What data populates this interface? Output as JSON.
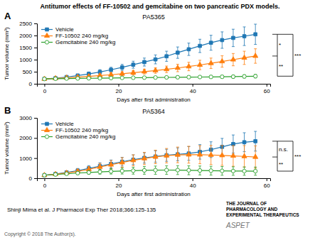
{
  "chart_data": [
    {
      "type": "line",
      "title": "PA5365",
      "xlabel": "Days after first administration",
      "ylabel": "Tumor volume (mm³)",
      "x": [
        0,
        3,
        6,
        9,
        12,
        15,
        18,
        21,
        24,
        27,
        30,
        33,
        36,
        39,
        42,
        45,
        48,
        51,
        54,
        57
      ],
      "series": [
        {
          "name": "Vehicle",
          "marker": "square",
          "values": [
            200,
            230,
            280,
            340,
            410,
            490,
            580,
            680,
            790,
            900,
            1010,
            1140,
            1290,
            1430,
            1570,
            1700,
            1810,
            1900,
            1970,
            2050
          ],
          "errors": [
            30,
            45,
            55,
            65,
            80,
            95,
            105,
            125,
            145,
            165,
            185,
            210,
            235,
            255,
            275,
            310,
            340,
            360,
            385,
            420
          ]
        },
        {
          "name": "FF-10502 240 mg/kg",
          "marker": "triangle",
          "values": [
            200,
            225,
            250,
            275,
            305,
            340,
            375,
            415,
            460,
            505,
            550,
            600,
            655,
            715,
            780,
            850,
            925,
            1000,
            1075,
            1150
          ],
          "errors": [
            30,
            38,
            45,
            50,
            58,
            65,
            72,
            80,
            90,
            100,
            115,
            135,
            155,
            175,
            195,
            215,
            235,
            255,
            275,
            300
          ]
        },
        {
          "name": "Gemcitabine 240 mg/kg",
          "marker": "circle-open",
          "values": [
            200,
            210,
            218,
            222,
            228,
            232,
            238,
            245,
            250,
            255,
            260,
            265,
            270,
            275,
            280,
            285,
            290,
            295,
            305,
            315
          ],
          "errors": [
            25,
            28,
            30,
            32,
            34,
            36,
            38,
            40,
            43,
            46,
            49,
            52,
            55,
            57,
            59,
            61,
            63,
            66,
            69,
            72
          ]
        }
      ],
      "xlim": [
        -2,
        61
      ],
      "xticks": [
        0,
        20,
        40,
        60
      ],
      "ylim": [
        0,
        2500
      ],
      "yticks": [
        0,
        500,
        1000,
        1500,
        2000,
        2500
      ],
      "grid": false,
      "legend": "upper-left",
      "annotations": [
        "A",
        "*",
        "***",
        "**",
        "Antitumor effects of FF-10502 and gemcitabine on two pancreatic PDX models.",
        "Shinji Mima et al. J Pharmacol Exp Ther 2018;366:125-135",
        "Copyright © 2018 The Author(s).",
        "THE JOURNAL OF",
        "PHARMACOLOGY AND",
        "EXPERIMENTAL THERAPEUTICS",
        "ASPET"
      ]
    },
    {
      "type": "line",
      "title": "PA5364",
      "xlabel": "Days after first administration",
      "ylabel": "Tumor volume (mm³)",
      "x": [
        0,
        3,
        6,
        9,
        12,
        15,
        18,
        21,
        24,
        27,
        30,
        33,
        36,
        39,
        42,
        45,
        48,
        51,
        54,
        57
      ],
      "series": [
        {
          "name": "Vehicle",
          "marker": "square",
          "values": [
            150,
            210,
            290,
            380,
            490,
            600,
            710,
            820,
            920,
            1010,
            1080,
            1140,
            1190,
            1230,
            1310,
            1420,
            1560,
            1700,
            1790,
            1840
          ],
          "errors": [
            30,
            55,
            80,
            105,
            135,
            165,
            195,
            215,
            240,
            260,
            280,
            300,
            320,
            340,
            360,
            390,
            420,
            450,
            470,
            490
          ]
        },
        {
          "name": "FF-10502 240 mg/kg",
          "marker": "triangle",
          "values": [
            150,
            200,
            260,
            340,
            440,
            560,
            670,
            780,
            890,
            980,
            1060,
            1120,
            1160,
            1170,
            1170,
            1155,
            1135,
            1110,
            1085,
            1055
          ],
          "errors": [
            30,
            55,
            80,
            105,
            140,
            175,
            210,
            245,
            275,
            305,
            335,
            360,
            390,
            420,
            450,
            475,
            495,
            515,
            535,
            555
          ]
        },
        {
          "name": "Gemcitabine 240 mg/kg",
          "marker": "circle-open",
          "values": [
            150,
            185,
            220,
            255,
            285,
            315,
            340,
            360,
            375,
            390,
            400,
            405,
            405,
            395,
            385,
            375,
            365,
            358,
            355,
            352
          ],
          "errors": [
            25,
            42,
            58,
            74,
            92,
            112,
            132,
            152,
            172,
            192,
            205,
            215,
            222,
            222,
            222,
            220,
            217,
            212,
            208,
            204
          ]
        }
      ],
      "xlim": [
        -2,
        61
      ],
      "xticks": [
        0,
        20,
        40,
        60
      ],
      "ylim": [
        0,
        3000
      ],
      "yticks": [
        0,
        1000,
        2000,
        3000
      ],
      "grid": false,
      "legend": "upper-left",
      "annotations": [
        "B",
        "n.s.",
        "***",
        "**"
      ]
    }
  ]
}
